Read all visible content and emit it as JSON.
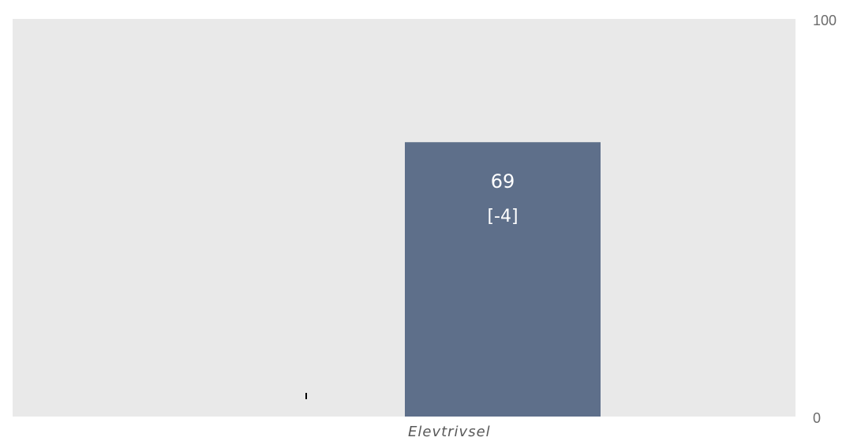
{
  "chart_data": {
    "type": "bar",
    "categories": [
      "Elevtrivsel"
    ],
    "values": [
      69
    ],
    "change_labels": [
      "[-4]"
    ],
    "ylim": [
      0,
      100
    ],
    "y_ticks": [
      "100",
      "0"
    ],
    "grid": false,
    "colors": {
      "plot_background": "#e9e9e9",
      "bar": "#5e6f8a",
      "label_text": "#ffffff"
    }
  }
}
